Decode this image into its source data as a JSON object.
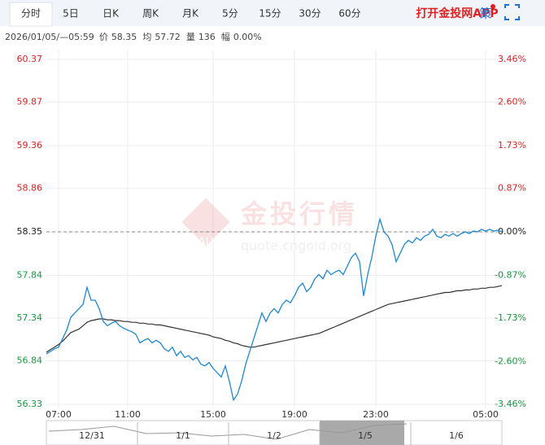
{
  "toolbar": {
    "tabs": [
      "分时",
      "5日",
      "日K",
      "周K",
      "月K",
      "5分",
      "15分",
      "30分",
      "60分"
    ],
    "app_link": "打开金投网APP",
    "strategy": "策"
  },
  "info": {
    "time": "2026/01/05/—05:59",
    "items": [
      {
        "label": "价",
        "value": "58.35"
      },
      {
        "label": "均",
        "value": "57.72"
      },
      {
        "label": "量",
        "value": "136"
      },
      {
        "label": "幅",
        "value": "0.00%"
      }
    ]
  },
  "watermark": {
    "logo": "AU",
    "name": "金投行情",
    "site": "quote.cngold.org"
  },
  "navigator": {
    "labels": [
      "12/31",
      "1/1",
      "1/2",
      "1/5",
      "1/6"
    ]
  },
  "chart_data": {
    "type": "line",
    "categories": [
      null,
      null,
      null,
      "07:00",
      null,
      null,
      null,
      null,
      null,
      null,
      null,
      null,
      null,
      null,
      null,
      null,
      null,
      null,
      null,
      null,
      "11:00",
      null,
      null,
      null,
      null,
      null,
      null,
      null,
      null,
      null,
      null,
      null,
      null,
      null,
      null,
      null,
      null,
      null,
      null,
      null,
      null,
      "15:00",
      null,
      null,
      null,
      null,
      null,
      null,
      null,
      null,
      null,
      null,
      null,
      null,
      null,
      null,
      null,
      null,
      null,
      null,
      null,
      "19:00",
      null,
      null,
      null,
      null,
      null,
      null,
      null,
      null,
      null,
      null,
      null,
      null,
      null,
      null,
      null,
      null,
      null,
      null,
      null,
      "23:00",
      null,
      null,
      null,
      null,
      null,
      null,
      null,
      null,
      null,
      null,
      null,
      null,
      null,
      null,
      null,
      null,
      null,
      null,
      null,
      null,
      null,
      null,
      null,
      null,
      null,
      null,
      "05:00",
      null,
      null,
      null,
      null
    ],
    "series": [
      {
        "name": "价",
        "color": "#1e88d6",
        "values": [
          56.92,
          56.95,
          56.98,
          57.0,
          57.1,
          57.2,
          57.35,
          57.4,
          57.45,
          57.5,
          57.7,
          57.55,
          57.55,
          57.45,
          57.3,
          57.25,
          57.28,
          57.3,
          57.25,
          57.22,
          57.2,
          57.18,
          57.15,
          57.05,
          57.08,
          57.1,
          57.05,
          57.08,
          57.05,
          56.98,
          56.95,
          57.0,
          56.9,
          56.95,
          56.88,
          56.9,
          56.85,
          56.88,
          56.8,
          56.78,
          56.82,
          56.75,
          56.7,
          56.65,
          56.78,
          56.6,
          56.38,
          56.45,
          56.6,
          56.8,
          56.95,
          57.1,
          57.25,
          57.4,
          57.3,
          57.4,
          57.45,
          57.4,
          57.5,
          57.55,
          57.52,
          57.6,
          57.7,
          57.75,
          57.65,
          57.7,
          57.8,
          57.85,
          57.8,
          57.9,
          57.85,
          57.88,
          57.9,
          57.85,
          57.95,
          58.05,
          58.1,
          58.0,
          57.6,
          57.85,
          58.05,
          58.3,
          58.5,
          58.35,
          58.3,
          58.2,
          58.0,
          58.1,
          58.2,
          58.25,
          58.22,
          58.28,
          58.25,
          58.3,
          58.32,
          58.38,
          58.3,
          58.28,
          58.32,
          58.3,
          58.33,
          58.3,
          58.33,
          58.35,
          58.33,
          58.36,
          58.35,
          58.38,
          58.36,
          58.38,
          58.36,
          58.37,
          58.35
        ]
      },
      {
        "name": "均",
        "color": "#333333",
        "values": [
          56.94,
          56.97,
          57.0,
          57.03,
          57.07,
          57.12,
          57.17,
          57.19,
          57.21,
          57.25,
          57.29,
          57.31,
          57.32,
          57.33,
          57.33,
          57.32,
          57.32,
          57.31,
          57.31,
          57.3,
          57.3,
          57.29,
          57.29,
          57.28,
          57.28,
          57.27,
          57.27,
          57.26,
          57.26,
          57.25,
          57.24,
          57.23,
          57.22,
          57.21,
          57.2,
          57.19,
          57.18,
          57.17,
          57.16,
          57.15,
          57.14,
          57.12,
          57.11,
          57.1,
          57.08,
          57.07,
          57.05,
          57.04,
          57.02,
          57.01,
          57.0,
          57.0,
          57.01,
          57.02,
          57.03,
          57.04,
          57.05,
          57.06,
          57.07,
          57.08,
          57.09,
          57.1,
          57.11,
          57.12,
          57.13,
          57.14,
          57.15,
          57.16,
          57.18,
          57.2,
          57.22,
          57.24,
          57.26,
          57.28,
          57.3,
          57.32,
          57.34,
          57.36,
          57.38,
          57.4,
          57.42,
          57.44,
          57.46,
          57.48,
          57.5,
          57.51,
          57.52,
          57.53,
          57.54,
          57.55,
          57.56,
          57.57,
          57.58,
          57.59,
          57.6,
          57.61,
          57.62,
          57.63,
          57.64,
          57.64,
          57.65,
          57.66,
          57.66,
          57.67,
          57.67,
          57.68,
          57.68,
          57.69,
          57.69,
          57.7,
          57.7,
          57.71,
          57.72
        ]
      }
    ],
    "ylim": [
      56.33,
      60.37
    ],
    "yticks": [
      60.37,
      59.87,
      59.36,
      58.86,
      58.35,
      57.84,
      57.34,
      56.84,
      56.33
    ],
    "y2lim": [
      -3.46,
      3.46
    ],
    "y2ticks": [
      {
        "value": 3.46,
        "label": "3.46%"
      },
      {
        "value": 2.6,
        "label": "2.60%"
      },
      {
        "value": 1.73,
        "label": "1.73%"
      },
      {
        "value": 0.87,
        "label": "0.87%"
      },
      {
        "value": 0,
        "label": "0.00%"
      },
      {
        "value": -0.87,
        "label": "-0.87%"
      },
      {
        "value": -1.73,
        "label": "-1.73%"
      },
      {
        "value": -2.6,
        "label": "-2.60%"
      },
      {
        "value": -3.46,
        "label": "-3.46%"
      }
    ],
    "baseline": 58.35,
    "up_color": "#e02020",
    "down_color": "#149a3c",
    "flat_color": "#222222",
    "grid": true
  }
}
